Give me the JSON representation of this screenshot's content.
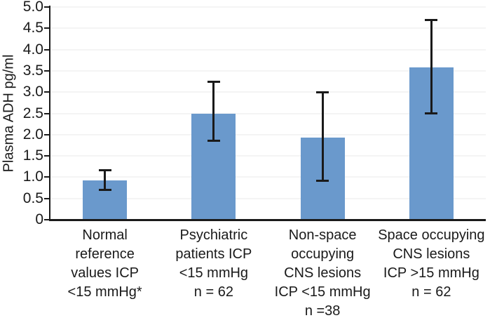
{
  "chart_data": {
    "type": "bar",
    "title": "",
    "ylabel": "Plasma ADH pg/ml",
    "xlabel": "",
    "ylim": [
      0,
      5
    ],
    "ytick_values": [
      0,
      0.5,
      1,
      1.5,
      2,
      2.5,
      3,
      3.5,
      4,
      4.5,
      5
    ],
    "ytick_labels": [
      "0",
      "0.5",
      "1.0",
      "1.5",
      "2.0",
      "2.5",
      "3.0",
      "3.5",
      "4.0",
      "4.5",
      "5.0"
    ],
    "grid": "horizontal light gridlines at every 0.5",
    "legend_position": "none",
    "colors": {
      "bar_fill": "#6a99cc",
      "error_bar": "#1a1a1a",
      "axis": "#1a1a1a",
      "gridline": "#f4f4f4",
      "background": "#ffffff"
    },
    "categories": [
      "Normal reference values ICP <15 mmHg*",
      "Psychiatric patients ICP <15 mmHg n = 62",
      "Non-space occupying CNS lesions ICP <15 mmHg n =38",
      "Space occupying CNS lesions ICP >15 mmHg n = 62"
    ],
    "category_label_lines": [
      [
        "Normal",
        "reference",
        "values ICP",
        "<15 mmHg*"
      ],
      [
        "Psychiatric",
        "patients ICP",
        "<15 mmHg",
        "n = 62"
      ],
      [
        "Non-space",
        "occupying",
        "CNS lesions",
        "ICP <15 mmHg",
        "n =38"
      ],
      [
        "Space occupying",
        "CNS lesions",
        "ICP >15 mmHg",
        "n = 62"
      ]
    ],
    "series": [
      {
        "name": "Plasma ADH pg/ml",
        "values": [
          0.93,
          2.5,
          1.93,
          3.58
        ],
        "error_low": [
          0.7,
          1.85,
          0.9,
          2.5
        ],
        "error_high": [
          1.17,
          3.25,
          3.0,
          4.7
        ]
      }
    ]
  }
}
